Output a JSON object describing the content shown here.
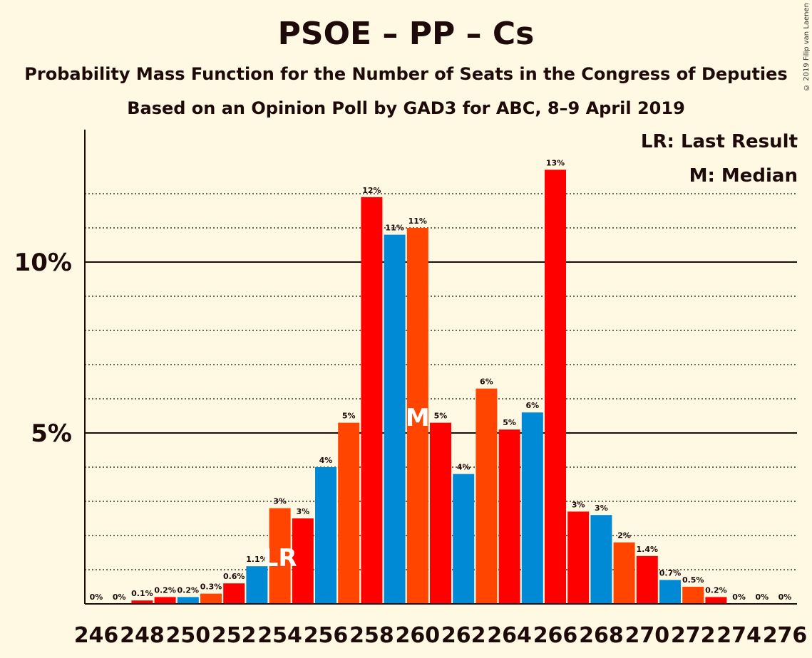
{
  "title": "PSOE – PP – Cs",
  "subtitle1": "Probability Mass Function for the Number of Seats in the Congress of Deputies",
  "subtitle2": "Based on an Opinion Poll by GAD3 for ABC, 8–9 April 2019",
  "copyright": "© 2019 Filip van Laenen",
  "legend": {
    "last_result": "LR: Last Result",
    "median": "M: Median"
  },
  "colors": {
    "background": "#fff8e2",
    "red": "#ff0000",
    "orange": "#ff4500",
    "blue": "#008ad6"
  },
  "chart_data": {
    "type": "bar",
    "x": [
      246,
      247,
      248,
      249,
      250,
      251,
      252,
      253,
      254,
      255,
      256,
      257,
      258,
      259,
      260,
      261,
      262,
      263,
      264,
      265,
      266,
      267,
      268,
      269,
      270,
      271,
      272,
      273,
      274,
      275,
      276
    ],
    "values": [
      0,
      0,
      0.1,
      0.2,
      0.2,
      0.3,
      0.6,
      1.1,
      2.8,
      2.5,
      4.0,
      5.3,
      11.9,
      10.8,
      11.0,
      5.3,
      3.8,
      6.3,
      5.1,
      5.6,
      12.7,
      2.7,
      2.6,
      1.8,
      1.4,
      0.7,
      0.5,
      0.2,
      0,
      0,
      0
    ],
    "labels": [
      "0%",
      "0%",
      "0.1%",
      "0.2%",
      "0.2%",
      "0.3%",
      "0.6%",
      "1.1%",
      "3%",
      "3%",
      "4%",
      "5%",
      "12%",
      "11%",
      "11%",
      "5%",
      "4%",
      "6%",
      "5%",
      "6%",
      "13%",
      "3%",
      "3%",
      "2%",
      "1.4%",
      "0.7%",
      "0.5%",
      "0.2%",
      "0%",
      "0%",
      "0%"
    ],
    "bar_colors": [
      "red",
      "orange",
      "red",
      "red",
      "blue",
      "orange",
      "red",
      "blue",
      "orange",
      "red",
      "blue",
      "orange",
      "red",
      "blue",
      "orange",
      "red",
      "blue",
      "orange",
      "red",
      "blue",
      "red",
      "red",
      "blue",
      "orange",
      "red",
      "blue",
      "orange",
      "red",
      "blue",
      "orange",
      "red"
    ],
    "xticks": [
      246,
      248,
      250,
      252,
      254,
      256,
      258,
      260,
      262,
      264,
      266,
      268,
      270,
      272,
      274,
      276
    ],
    "yticks": [
      {
        "value": 5,
        "label": "5%"
      },
      {
        "value": 10,
        "label": "10%"
      }
    ],
    "ylim": [
      0,
      14
    ],
    "grid": "dotted every 1%, solid at 5% and 10%",
    "last_result_seat": 254,
    "last_result_marker": "LR",
    "median_seat": 260,
    "median_marker": "M"
  }
}
